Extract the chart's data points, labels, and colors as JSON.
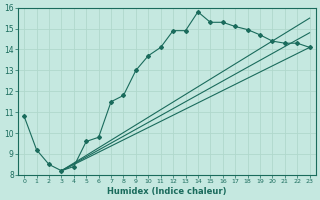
{
  "xlabel": "Humidex (Indice chaleur)",
  "xlim": [
    -0.5,
    23.5
  ],
  "ylim": [
    8,
    16
  ],
  "yticks": [
    8,
    9,
    10,
    11,
    12,
    13,
    14,
    15,
    16
  ],
  "xticks": [
    0,
    1,
    2,
    3,
    4,
    5,
    6,
    7,
    8,
    9,
    10,
    11,
    12,
    13,
    14,
    15,
    16,
    17,
    18,
    19,
    20,
    21,
    22,
    23
  ],
  "bg_color": "#c5e8e0",
  "line_color": "#1a6b5c",
  "grid_color": "#b0d8cc",
  "line1_x": [
    0,
    1,
    2,
    3,
    4,
    5,
    6,
    7,
    8,
    9,
    10,
    11,
    12,
    13,
    14,
    15,
    16,
    17,
    18,
    19,
    20,
    21,
    22,
    23
  ],
  "line1_y": [
    10.8,
    9.2,
    8.5,
    8.2,
    8.4,
    9.6,
    9.8,
    11.5,
    11.8,
    13.0,
    13.7,
    14.1,
    14.9,
    14.9,
    15.8,
    15.3,
    15.3,
    15.1,
    14.95,
    14.7,
    14.4,
    14.3,
    14.3,
    14.1
  ],
  "line2_x": [
    3,
    23
  ],
  "line2_y": [
    8.2,
    14.1
  ],
  "line3_x": [
    3,
    23
  ],
  "line3_y": [
    8.2,
    14.8
  ],
  "line4_x": [
    3,
    23
  ],
  "line4_y": [
    8.2,
    15.5
  ]
}
